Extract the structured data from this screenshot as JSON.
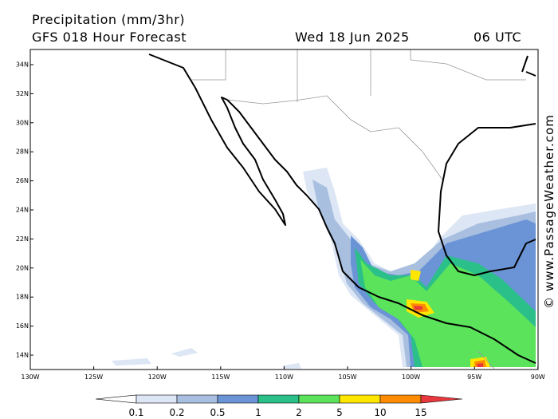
{
  "header": {
    "title": "Precipitation (mm/3hr)",
    "subtitle": "GFS 018 Hour Forecast",
    "date": "Wed 18 Jun 2025",
    "time": "06 UTC"
  },
  "map": {
    "lat_labels": [
      "34N",
      "32N",
      "30N",
      "28N",
      "26N",
      "24N",
      "22N",
      "20N",
      "18N",
      "16N",
      "14N"
    ],
    "lon_labels": [
      "130W",
      "125W",
      "120W",
      "115W",
      "110W",
      "105W",
      "100W",
      "95W",
      "90W"
    ]
  },
  "legend": {
    "labels": [
      "0.1",
      "0.2",
      "0.5",
      "1",
      "2",
      "5",
      "10",
      "15"
    ]
  },
  "watermark": "© www.PassageWeather.com"
}
